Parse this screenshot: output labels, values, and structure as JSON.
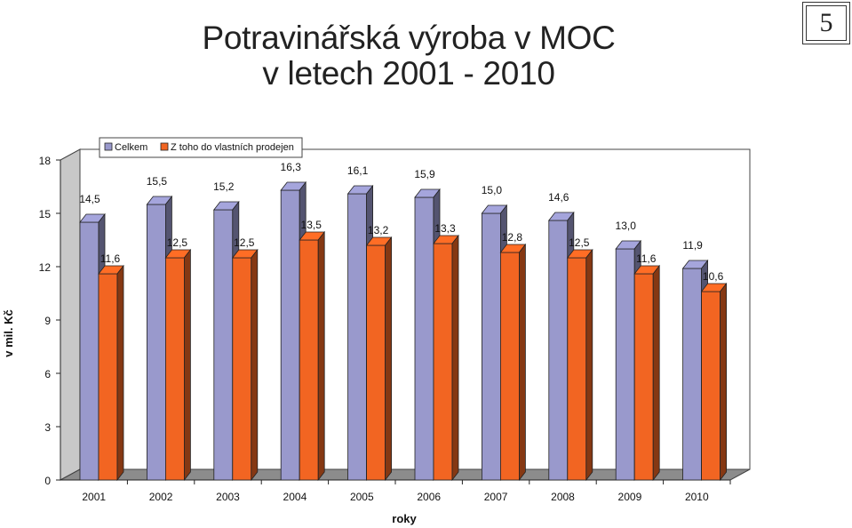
{
  "title_line1": "Potravinářská výroba v MOC",
  "title_line2": "v letech 2001 - 2010",
  "page_number": "5",
  "chart_data": {
    "type": "bar",
    "title": "Potravinářská výroba v MOC v letech 2001 - 2010",
    "xlabel": "roky",
    "ylabel": "v mil. Kč",
    "ylim": [
      0,
      18
    ],
    "yticks": [
      0,
      3,
      6,
      9,
      12,
      15,
      18
    ],
    "categories": [
      "2001",
      "2002",
      "2003",
      "2004",
      "2005",
      "2006",
      "2007",
      "2008",
      "2009",
      "2010"
    ],
    "series": [
      {
        "name": "Celkem",
        "color": "#9999cc",
        "values": [
          14.5,
          15.5,
          15.2,
          16.3,
          16.1,
          15.9,
          15.0,
          14.6,
          13.0,
          11.9
        ],
        "labels": [
          "14,5",
          "15,5",
          "15,2",
          "16,3",
          "16,1",
          "15,9",
          "15,0",
          "14,6",
          "13,0",
          "11,9"
        ]
      },
      {
        "name": "Z toho do vlastních prodejen",
        "color": "#f26522",
        "values": [
          11.6,
          12.5,
          12.5,
          13.5,
          13.2,
          13.3,
          12.8,
          12.5,
          11.6,
          10.6
        ],
        "labels": [
          "11,6",
          "12,5",
          "12,5",
          "13,5",
          "13,2",
          "13,3",
          "12,8",
          "12,5",
          "11,6",
          "10,6"
        ]
      }
    ],
    "grid": false,
    "legend_position": "top-left"
  }
}
